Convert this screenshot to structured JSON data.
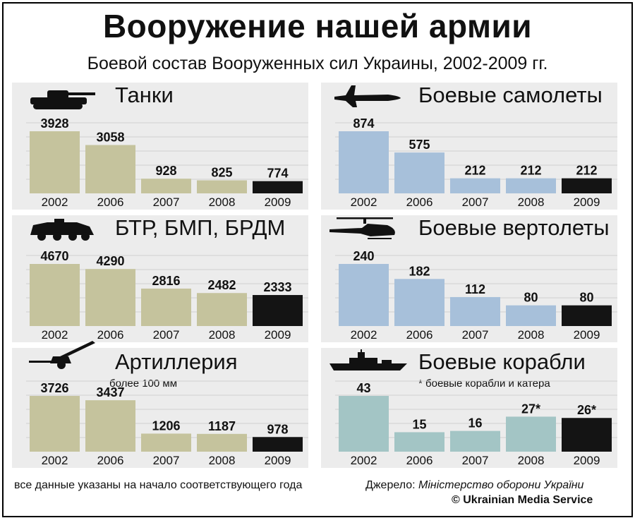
{
  "title": "Вооружение нашей армии",
  "subtitle": "Боевой состав Вооруженных сил Украины, 2002-2009 гг.",
  "colors": {
    "khaki": "#c5c39d",
    "blue": "#a7c0da",
    "teal": "#a3c5c5",
    "dark": "#141414",
    "panel": "#ececec"
  },
  "icons": {
    "tanks": "tank-icon",
    "planes": "fighter-jet-icon",
    "apc": "armored-vehicle-icon",
    "helicopters": "helicopter-icon",
    "artillery": "howitzer-icon",
    "ships": "warship-icon"
  },
  "chart_data": [
    {
      "type": "bar",
      "title": "Танки",
      "categories": [
        "2002",
        "2006",
        "2007",
        "2008",
        "2009"
      ],
      "values": [
        3928,
        3058,
        928,
        825,
        774
      ],
      "value_labels": [
        "3928",
        "3058",
        "928",
        "825",
        "774"
      ],
      "color": "khaki"
    },
    {
      "type": "bar",
      "title": "Боевые самолеты",
      "categories": [
        "2002",
        "2006",
        "2007",
        "2008",
        "2009"
      ],
      "values": [
        874,
        575,
        212,
        212,
        212
      ],
      "value_labels": [
        "874",
        "575",
        "212",
        "212",
        "212"
      ],
      "color": "blue"
    },
    {
      "type": "bar",
      "title": "БТР, БМП, БРДМ",
      "categories": [
        "2002",
        "2006",
        "2007",
        "2008",
        "2009"
      ],
      "values": [
        4670,
        4290,
        2816,
        2482,
        2333
      ],
      "value_labels": [
        "4670",
        "4290",
        "2816",
        "2482",
        "2333"
      ],
      "color": "khaki"
    },
    {
      "type": "bar",
      "title": "Боевые вертолеты",
      "categories": [
        "2002",
        "2006",
        "2007",
        "2008",
        "2009"
      ],
      "values": [
        240,
        182,
        112,
        80,
        80
      ],
      "value_labels": [
        "240",
        "182",
        "112",
        "80",
        "80"
      ],
      "color": "blue"
    },
    {
      "type": "bar",
      "title": "Артиллерия",
      "subtitle": "более 100 мм",
      "categories": [
        "2002",
        "2006",
        "2007",
        "2008",
        "2009"
      ],
      "values": [
        3726,
        3437,
        1206,
        1187,
        978
      ],
      "value_labels": [
        "3726",
        "3437",
        "1206",
        "1187",
        "978"
      ],
      "color": "khaki"
    },
    {
      "type": "bar",
      "title": "Боевые корабли",
      "subtitle": "* боевые корабли и катера",
      "categories": [
        "2002",
        "2006",
        "2007",
        "2008",
        "2009"
      ],
      "values": [
        43,
        15,
        16,
        27,
        26
      ],
      "value_labels": [
        "43",
        "15",
        "16",
        "27*",
        "26*"
      ],
      "color": "teal"
    }
  ],
  "footer": {
    "note": "все данные указаны на начало соответствующего года",
    "source_prefix": "Джерело: ",
    "source_name": "Міністерство оборони України",
    "copyright": "© Ukrainian Media Service"
  }
}
